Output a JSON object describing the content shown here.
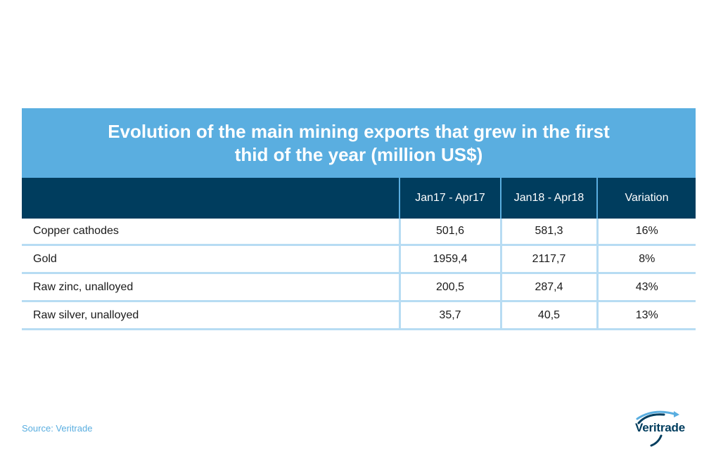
{
  "chart_data": {
    "type": "table",
    "title": "Evolution of the main mining exports that grew in the first\nthid of the year (million US$)",
    "columns": [
      "",
      "Jan17 - Apr17",
      "Jan18 - Apr18",
      "Variation"
    ],
    "rows": [
      {
        "label": "Copper cathodes",
        "values": [
          "501,6",
          "581,3",
          "16%"
        ]
      },
      {
        "label": "Gold",
        "values": [
          "1959,4",
          "2117,7",
          "8%"
        ]
      },
      {
        "label": "Raw zinc, unalloyed",
        "values": [
          "200,5",
          "287,4",
          "43%"
        ]
      },
      {
        "label": "Raw silver, unalloyed",
        "values": [
          "35,7",
          "40,5",
          "13%"
        ]
      }
    ]
  },
  "footer": {
    "source": "Source: Veritrade",
    "logo_text": "Veritrade"
  },
  "colors": {
    "title_band": "#5aaee0",
    "header_row": "#003d5e",
    "row_border": "#b7dcf3"
  }
}
